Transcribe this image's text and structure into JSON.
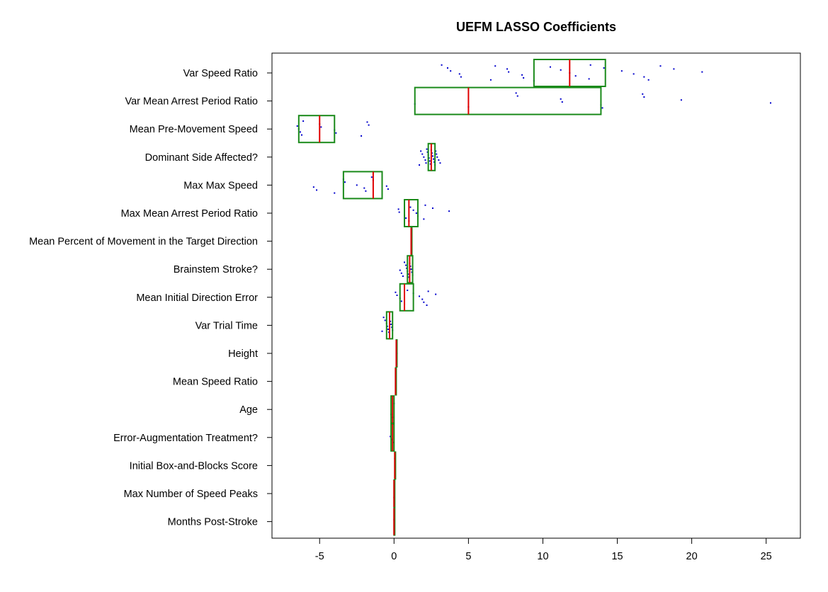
{
  "chart_data": {
    "type": "box",
    "title": "UEFM LASSO Coefficients",
    "xlabel": "",
    "ylabel": "",
    "xlim": [
      -8.2,
      27.3
    ],
    "xticks": [
      -5,
      0,
      5,
      10,
      15,
      20,
      25
    ],
    "xtick_labels": [
      "-5",
      "0",
      "5",
      "10",
      "15",
      "20",
      "25"
    ],
    "colors": {
      "box": "#1a8a1a",
      "median": "#e00000",
      "points": "#0000cc",
      "axis": "#000000"
    },
    "variables": [
      {
        "label": "Var Speed Ratio",
        "box": [
          9.4,
          11.8,
          14.2
        ],
        "points": [
          3.2,
          3.6,
          3.8,
          4.4,
          4.5,
          6.5,
          6.8,
          7.6,
          7.7,
          8.6,
          8.7,
          9.4,
          10.5,
          11.2,
          11.8,
          12.2,
          13.1,
          13.2,
          14.1,
          15.3,
          16.1,
          16.8,
          17.1,
          17.9,
          18.8,
          20.7
        ]
      },
      {
        "label": "Var Mean Arrest Period Ratio",
        "box": [
          1.4,
          5.0,
          13.9
        ],
        "points": [
          1.4,
          5.0,
          8.2,
          8.3,
          11.2,
          11.3,
          13.9,
          14.0,
          16.7,
          16.8,
          19.3,
          25.3
        ]
      },
      {
        "label": "Mean Pre-Movement Speed",
        "box": [
          -6.4,
          -5.0,
          -4.0
        ],
        "points": [
          -6.5,
          -6.4,
          -6.3,
          -6.2,
          -6.1,
          -5.0,
          -4.9,
          -4.0,
          -3.9,
          -2.2,
          -1.8,
          -1.7
        ]
      },
      {
        "label": "Dominant Side Affected?",
        "box": [
          2.3,
          2.5,
          2.75
        ],
        "points": [
          1.7,
          1.8,
          1.9,
          2.0,
          2.1,
          2.15,
          2.2,
          2.25,
          2.3,
          2.35,
          2.4,
          2.45,
          2.5,
          2.55,
          2.6,
          2.65,
          2.7,
          2.75,
          2.8,
          2.85,
          2.9,
          3.0,
          3.1
        ]
      },
      {
        "label": "Max Max Speed",
        "box": [
          -3.4,
          -1.4,
          -0.8
        ],
        "points": [
          -5.4,
          -5.2,
          -4.0,
          -3.4,
          -3.3,
          -2.5,
          -2.0,
          -1.9,
          -1.5,
          -1.4,
          -0.8,
          -0.5,
          -0.4
        ]
      },
      {
        "label": "Max Mean Arrest Period Ratio",
        "box": [
          0.7,
          1.0,
          1.6
        ],
        "points": [
          0.3,
          0.35,
          0.7,
          0.8,
          1.0,
          1.1,
          1.3,
          1.5,
          1.6,
          2.0,
          2.1,
          2.6,
          3.7
        ]
      },
      {
        "label": "Mean Percent of Movement in the Target Direction",
        "box": [
          1.15,
          1.15,
          1.15
        ],
        "points": []
      },
      {
        "label": "Brainstem Stroke?",
        "box": [
          0.9,
          1.05,
          1.25
        ],
        "points": [
          0.4,
          0.5,
          0.6,
          0.7,
          0.8,
          0.85,
          0.9,
          0.95,
          1.0,
          1.05,
          1.1,
          1.15,
          1.2,
          1.25
        ]
      },
      {
        "label": "Mean Initial Direction Error",
        "box": [
          0.4,
          0.7,
          1.3
        ],
        "points": [
          0.1,
          0.2,
          0.4,
          0.5,
          0.7,
          0.9,
          1.3,
          1.7,
          1.9,
          2.0,
          2.2,
          2.3,
          2.8
        ]
      },
      {
        "label": "Var Trial Time",
        "box": [
          -0.5,
          -0.3,
          -0.1
        ],
        "points": [
          -0.8,
          -0.7,
          -0.6,
          -0.5,
          -0.45,
          -0.4,
          -0.35,
          -0.3,
          -0.25,
          -0.2,
          -0.15,
          -0.1
        ]
      },
      {
        "label": "Height",
        "box": [
          0.15,
          0.15,
          0.15
        ],
        "points": [
          0.2
        ]
      },
      {
        "label": "Mean Speed Ratio",
        "box": [
          0.1,
          0.1,
          0.1
        ],
        "points": [
          0.12
        ]
      },
      {
        "label": "Age",
        "box": [
          -0.2,
          -0.1,
          0.0
        ],
        "points": [
          -0.2,
          -0.1,
          0.0
        ]
      },
      {
        "label": "Error-Augmentation Treatment?",
        "box": [
          -0.2,
          -0.1,
          0.0
        ],
        "points": [
          -0.25,
          -0.15,
          -0.05
        ]
      },
      {
        "label": "Initial Box-and-Blocks Score",
        "box": [
          0.05,
          0.05,
          0.05
        ],
        "points": [
          0.05
        ]
      },
      {
        "label": "Max Number of Speed Peaks",
        "box": [
          0.0,
          0.0,
          0.0
        ],
        "points": [
          0.0
        ]
      },
      {
        "label": "Months Post-Stroke",
        "box": [
          0.0,
          0.0,
          0.0
        ],
        "points": [
          0.0
        ]
      }
    ]
  }
}
